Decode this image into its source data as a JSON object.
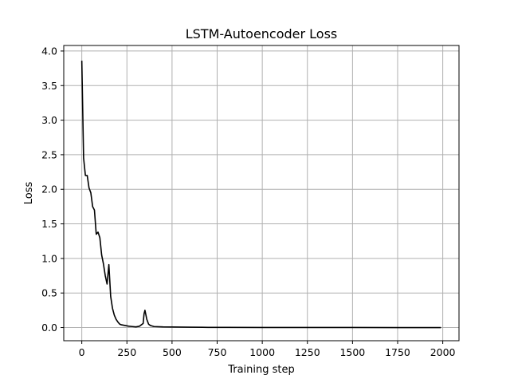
{
  "chart_data": {
    "type": "line",
    "title": "LSTM-Autoencoder Loss",
    "xlabel": "Training step",
    "ylabel": "Loss",
    "xlim": [
      -100,
      2090
    ],
    "ylim": [
      -0.19,
      4.08
    ],
    "xticks": [
      0,
      250,
      500,
      750,
      1000,
      1250,
      1500,
      1750,
      2000
    ],
    "xtick_labels": [
      "0",
      "250",
      "500",
      "750",
      "1000",
      "1250",
      "1500",
      "1750",
      "2000"
    ],
    "yticks": [
      0.0,
      0.5,
      1.0,
      1.5,
      2.0,
      2.5,
      3.0,
      3.5,
      4.0
    ],
    "ytick_labels": [
      "0.0",
      "0.5",
      "1.0",
      "1.5",
      "2.0",
      "2.5",
      "3.0",
      "3.5",
      "4.0"
    ],
    "grid": true,
    "series": [
      {
        "color": "#000000",
        "x": [
          0,
          10,
          20,
          30,
          40,
          50,
          60,
          70,
          80,
          90,
          100,
          110,
          120,
          130,
          140,
          150,
          160,
          170,
          180,
          190,
          200,
          210,
          220,
          240,
          260,
          280,
          300,
          320,
          330,
          340,
          345,
          350,
          360,
          370,
          380,
          400,
          450,
          500,
          600,
          700,
          800,
          1000,
          1250,
          1500,
          1750,
          1990
        ],
        "y": [
          3.86,
          2.45,
          2.2,
          2.2,
          2.02,
          1.95,
          1.75,
          1.7,
          1.35,
          1.38,
          1.3,
          1.05,
          0.92,
          0.75,
          0.63,
          0.91,
          0.45,
          0.28,
          0.18,
          0.12,
          0.08,
          0.05,
          0.04,
          0.03,
          0.02,
          0.015,
          0.01,
          0.02,
          0.04,
          0.06,
          0.2,
          0.25,
          0.12,
          0.05,
          0.03,
          0.015,
          0.01,
          0.008,
          0.005,
          0.003,
          0.002,
          0.001,
          0.001,
          0.001,
          0.0,
          0.0
        ]
      }
    ]
  }
}
